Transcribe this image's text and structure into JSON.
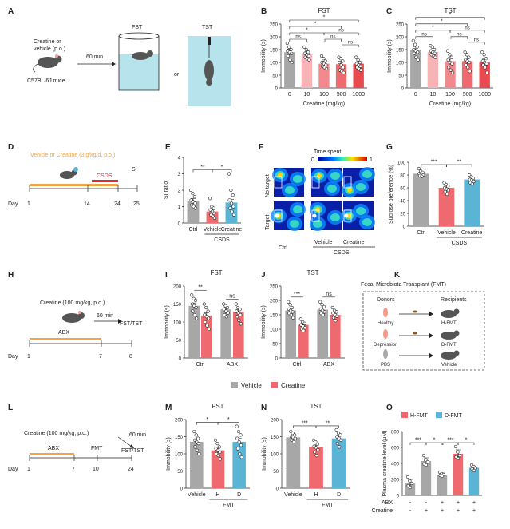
{
  "colors": {
    "gray": "#a7a7a7",
    "red": "#ef6a6e",
    "red_light": "#f7b3b5",
    "red_mid": "#f28a8d",
    "red_dark": "#e84a50",
    "blue": "#5ab4d6",
    "orange": "#f0a443",
    "pink": "#f36f86",
    "axis": "#222222"
  },
  "panels": {
    "A": {
      "label": "A",
      "drug_line1": "Creatine or",
      "drug_line2": "vehicle (p.o.)",
      "mouse": "C57BL/6J mice",
      "delay": "60 min",
      "fst": "FST",
      "tst": "TST",
      "or": "or"
    },
    "D": {
      "label": "D",
      "regimen": "Vehicle or Creatine (3 g/kg/d, p.o.)",
      "csds": "CSDS",
      "si": "SI",
      "day": "Day",
      "d1": "1",
      "d14": "14",
      "d24": "24",
      "d25": "25"
    },
    "F": {
      "label": "F",
      "legend_title": "Time spent",
      "legend_min": "0",
      "legend_max": "1",
      "row1": "No target",
      "row2": "Target",
      "cols": [
        "Ctrl",
        "Vehicle",
        "Creatine"
      ],
      "group": "CSDS"
    },
    "H": {
      "label": "H",
      "regimen": "Creatine (100 mg/kg, p.o.)",
      "delay": "60 min",
      "abx": "ABX",
      "tests": "FST/TST",
      "day": "Day",
      "d1": "1",
      "d7": "7",
      "d8": "8"
    },
    "K": {
      "label": "K",
      "title": "Fecal Microbiota Transplant (FMT)",
      "donors": "Donors",
      "recipients": "Recipients",
      "rows": [
        {
          "donor": "Healthy",
          "recipient": "H-FMT"
        },
        {
          "donor": "Depression",
          "recipient": "D-FMT"
        },
        {
          "donor": "PBS",
          "recipient": "Vehicle"
        }
      ]
    },
    "L": {
      "label": "L",
      "regimen": "Creatine (100 mg/kg, p.o.)",
      "delay": "60 min",
      "abx": "ABX",
      "fmt": "FMT",
      "tests": "FST/TST",
      "day": "Day",
      "d1": "1",
      "d7": "7",
      "d10": "10",
      "d24": "24"
    },
    "IJ_legend": {
      "vehicle": "Vehicle",
      "creatine": "Creatine"
    },
    "O_legend": {
      "h": "H-FMT",
      "d": "D-FMT"
    }
  },
  "chart_data": [
    {
      "id": "B",
      "type": "bar",
      "title": "FST",
      "ylabel": "Immobility (s)",
      "xlabel": "Creatine (mg/kg)",
      "ylim": [
        0,
        250
      ],
      "yticks": [
        "0",
        "50",
        "100",
        "150",
        "200",
        "250"
      ],
      "categories": [
        "0",
        "10",
        "100",
        "500",
        "1000"
      ],
      "values": [
        140,
        132,
        95,
        93,
        95
      ],
      "errors": [
        12,
        10,
        10,
        11,
        8
      ],
      "colors": [
        "#a7a7a7",
        "#f7b3b5",
        "#f28a8d",
        "#ef6a6e",
        "#e84a50"
      ],
      "points": [
        [
          175,
          160,
          150,
          145,
          140,
          135,
          125,
          110,
          100
        ],
        [
          160,
          150,
          140,
          135,
          130,
          125,
          120,
          115,
          110
        ],
        [
          125,
          115,
          105,
          100,
          95,
          90,
          85,
          80,
          75
        ],
        [
          120,
          115,
          105,
          100,
          90,
          80,
          70,
          65,
          60
        ],
        [
          120,
          110,
          100,
          95,
          90,
          85,
          80,
          75,
          70
        ]
      ],
      "sig": [
        {
          "from": 0,
          "to": 1,
          "label": "ns",
          "level": 0
        },
        {
          "from": 0,
          "to": 2,
          "label": "*",
          "level": 1
        },
        {
          "from": 0,
          "to": 3,
          "label": "*",
          "level": 2
        },
        {
          "from": 0,
          "to": 4,
          "label": "*",
          "level": 3
        },
        {
          "from": 2,
          "to": 3,
          "label": "ns",
          "level": 0
        },
        {
          "from": 3,
          "to": 4,
          "label": "ns",
          "level": -1
        },
        {
          "from": 2,
          "to": 4,
          "label": "ns",
          "level": 1
        }
      ]
    },
    {
      "id": "C",
      "type": "bar",
      "title": "TST",
      "ylabel": "Immobility (s)",
      "xlabel": "Creatine (mg/kg)",
      "ylim": [
        0,
        250
      ],
      "yticks": [
        "0",
        "50",
        "100",
        "150",
        "200",
        "250"
      ],
      "categories": [
        "0",
        "10",
        "100",
        "500",
        "1000"
      ],
      "values": [
        150,
        140,
        105,
        105,
        102
      ],
      "errors": [
        12,
        8,
        14,
        12,
        12
      ],
      "colors": [
        "#a7a7a7",
        "#f7b3b5",
        "#f28a8d",
        "#ef6a6e",
        "#e84a50"
      ],
      "points": [
        [
          185,
          170,
          160,
          150,
          145,
          140,
          135,
          120,
          110
        ],
        [
          165,
          160,
          150,
          145,
          140,
          135,
          130,
          125,
          120
        ],
        [
          145,
          130,
          120,
          110,
          100,
          95,
          80,
          70,
          60
        ],
        [
          140,
          130,
          120,
          110,
          105,
          100,
          90,
          80,
          65
        ],
        [
          140,
          130,
          115,
          105,
          100,
          95,
          90,
          80,
          60
        ]
      ],
      "sig": [
        {
          "from": 0,
          "to": 1,
          "label": "ns",
          "level": 0
        },
        {
          "from": 0,
          "to": 2,
          "label": "*",
          "level": 1
        },
        {
          "from": 0,
          "to": 3,
          "label": "*",
          "level": 2
        },
        {
          "from": 0,
          "to": 4,
          "label": "*",
          "level": 3
        },
        {
          "from": 2,
          "to": 3,
          "label": "ns",
          "level": 0
        },
        {
          "from": 3,
          "to": 4,
          "label": "ns",
          "level": -1
        },
        {
          "from": 2,
          "to": 4,
          "label": "ns",
          "level": 1
        }
      ]
    },
    {
      "id": "E",
      "type": "bar",
      "ylabel": "SI ratio",
      "ylim": [
        0,
        4
      ],
      "yticks": [
        "0",
        "1",
        "2",
        "3",
        "4"
      ],
      "categories": [
        "Ctrl",
        "Vehicle",
        "Creatine"
      ],
      "group": "CSDS",
      "values": [
        1.35,
        0.7,
        1.25
      ],
      "errors": [
        0.15,
        0.12,
        0.2
      ],
      "colors": [
        "#a7a7a7",
        "#ef6a6e",
        "#5ab4d6"
      ],
      "points": [
        [
          2.0,
          1.8,
          1.6,
          1.4,
          1.3,
          1.2,
          1.1,
          1.0,
          0.9
        ],
        [
          1.5,
          1.0,
          0.9,
          0.8,
          0.7,
          0.6,
          0.5,
          0.4,
          0.3
        ],
        [
          3.0,
          2.0,
          1.7,
          1.4,
          1.2,
          1.0,
          0.9,
          0.7,
          0.5
        ]
      ],
      "sig": [
        {
          "from": 0,
          "to": 1,
          "label": "**",
          "level": 0
        },
        {
          "from": 1,
          "to": 2,
          "label": "*",
          "level": 0
        }
      ]
    },
    {
      "id": "G",
      "type": "bar",
      "ylabel": "Sucrose preference (%)",
      "ylim": [
        0,
        100
      ],
      "yticks": [
        "0",
        "20",
        "40",
        "60",
        "80",
        "100"
      ],
      "categories": [
        "Ctrl",
        "Vehicle",
        "Creatine"
      ],
      "group": "CSDS",
      "values": [
        82,
        60,
        73
      ],
      "errors": [
        2,
        3,
        2
      ],
      "colors": [
        "#a7a7a7",
        "#ef6a6e",
        "#5ab4d6"
      ],
      "points": [
        [
          90,
          86,
          84,
          82,
          81,
          80,
          79,
          78
        ],
        [
          68,
          65,
          62,
          60,
          58,
          56,
          54,
          50
        ],
        [
          80,
          77,
          75,
          73,
          72,
          70,
          68,
          66
        ]
      ],
      "sig": [
        {
          "from": 0,
          "to": 1,
          "label": "***",
          "level": 0
        },
        {
          "from": 1,
          "to": 2,
          "label": "**",
          "level": 0
        }
      ]
    },
    {
      "id": "I",
      "type": "bar",
      "title": "FST",
      "ylabel": "Immobility (s)",
      "ylim": [
        0,
        200
      ],
      "yticks": [
        "0",
        "50",
        "100",
        "150",
        "200"
      ],
      "categories": [
        "Ctrl",
        "ABX"
      ],
      "series": [
        {
          "name": "Vehicle",
          "values": [
            145,
            135
          ],
          "errors": [
            8,
            5
          ]
        },
        {
          "name": "Creatine",
          "values": [
            118,
            128
          ],
          "errors": [
            8,
            6
          ]
        }
      ],
      "colors": [
        "#a7a7a7",
        "#ef6a6e"
      ],
      "points": [
        [
          [
            175,
            165,
            160,
            150,
            145,
            140,
            130,
            120,
            110
          ],
          [
            150,
            145,
            140,
            135,
            130,
            125,
            120,
            115
          ]
        ],
        [
          [
            150,
            140,
            130,
            120,
            115,
            110,
            100,
            90,
            80
          ],
          [
            150,
            140,
            135,
            130,
            125,
            120,
            115,
            105,
            95
          ]
        ]
      ],
      "sig": [
        {
          "group": 0,
          "label": "**"
        },
        {
          "group": 1,
          "label": "ns"
        }
      ]
    },
    {
      "id": "J",
      "type": "bar",
      "title": "TST",
      "ylabel": "Immobility (s)",
      "ylim": [
        0,
        250
      ],
      "yticks": [
        "0",
        "50",
        "100",
        "150",
        "200",
        "250"
      ],
      "categories": [
        "Ctrl",
        "ABX"
      ],
      "series": [
        {
          "name": "Vehicle",
          "values": [
            165,
            168
          ],
          "errors": [
            7,
            6
          ]
        },
        {
          "name": "Creatine",
          "values": [
            115,
            150
          ],
          "errors": [
            5,
            6
          ]
        }
      ],
      "colors": [
        "#a7a7a7",
        "#ef6a6e"
      ],
      "points": [
        [
          [
            195,
            185,
            175,
            170,
            165,
            160,
            155,
            150,
            140
          ],
          [
            195,
            185,
            178,
            170,
            165,
            160,
            155,
            150
          ]
        ],
        [
          [
            135,
            125,
            120,
            115,
            110,
            105,
            100,
            95
          ],
          [
            175,
            165,
            160,
            155,
            150,
            145,
            140,
            130
          ]
        ]
      ],
      "sig": [
        {
          "group": 0,
          "label": "***"
        },
        {
          "group": 1,
          "label": "ns"
        }
      ]
    },
    {
      "id": "M",
      "type": "bar",
      "title": "FST",
      "ylabel": "Immobility (s)",
      "ylim": [
        0,
        200
      ],
      "yticks": [
        "0",
        "50",
        "100",
        "150",
        "200"
      ],
      "categories": [
        "Vehicle",
        "H",
        "D"
      ],
      "group": "FMT",
      "values": [
        135,
        110,
        135
      ],
      "errors": [
        8,
        6,
        10
      ],
      "colors": [
        "#a7a7a7",
        "#ef6a6e",
        "#5ab4d6"
      ],
      "points": [
        [
          165,
          155,
          145,
          140,
          135,
          130,
          120,
          110,
          100
        ],
        [
          140,
          130,
          120,
          115,
          110,
          105,
          100,
          95,
          85
        ],
        [
          180,
          165,
          155,
          145,
          135,
          125,
          115,
          100,
          90
        ]
      ],
      "sig": [
        {
          "from": 0,
          "to": 1,
          "label": "*",
          "level": 0
        },
        {
          "from": 1,
          "to": 2,
          "label": "*",
          "level": 0
        }
      ]
    },
    {
      "id": "N",
      "type": "bar",
      "title": "TST",
      "ylabel": "Immobility (s)",
      "ylim": [
        0,
        200
      ],
      "yticks": [
        "0",
        "50",
        "100",
        "150",
        "200"
      ],
      "categories": [
        "Vehicle",
        "H",
        "D"
      ],
      "group": "FMT",
      "values": [
        148,
        120,
        145
      ],
      "errors": [
        5,
        6,
        7
      ],
      "colors": [
        "#a7a7a7",
        "#ef6a6e",
        "#5ab4d6"
      ],
      "points": [
        [
          165,
          160,
          155,
          150,
          148,
          145,
          140,
          135
        ],
        [
          140,
          135,
          128,
          122,
          118,
          112,
          105,
          95
        ],
        [
          170,
          160,
          155,
          150,
          145,
          140,
          130,
          120
        ]
      ],
      "sig": [
        {
          "from": 0,
          "to": 1,
          "label": "***",
          "level": 0
        },
        {
          "from": 1,
          "to": 2,
          "label": "**",
          "level": 0
        }
      ]
    },
    {
      "id": "O",
      "type": "bar",
      "ylabel": "Plasma creatine level (μM)",
      "ylim": [
        0,
        800
      ],
      "yticks": [
        "0",
        "200",
        "400",
        "600",
        "800"
      ],
      "categories": [
        "",
        "",
        "",
        "",
        ""
      ],
      "row_labels": [
        "ABX",
        "Creatine"
      ],
      "abx": [
        "-",
        "-",
        "+",
        "+",
        "+"
      ],
      "creatine": [
        "-",
        "+",
        "+",
        "+",
        "+"
      ],
      "values": [
        160,
        430,
        260,
        520,
        345
      ],
      "errors": [
        40,
        40,
        20,
        50,
        20
      ],
      "colors": [
        "#a7a7a7",
        "#a7a7a7",
        "#a7a7a7",
        "#ef6a6e",
        "#5ab4d6"
      ],
      "points": [
        [
          230,
          180,
          150,
          120,
          100
        ],
        [
          500,
          440,
          420,
          390,
          380
        ],
        [
          290,
          270,
          260,
          250,
          240
        ],
        [
          610,
          540,
          500,
          480,
          460
        ],
        [
          380,
          360,
          340,
          330,
          310
        ]
      ],
      "sig": [
        {
          "from": 0,
          "to": 1,
          "label": "***",
          "level": 0
        },
        {
          "from": 1,
          "to": 2,
          "label": "*",
          "level": 0
        },
        {
          "from": 2,
          "to": 3,
          "label": "***",
          "level": 0
        },
        {
          "from": 3,
          "to": 4,
          "label": "*",
          "level": 0
        }
      ]
    }
  ]
}
